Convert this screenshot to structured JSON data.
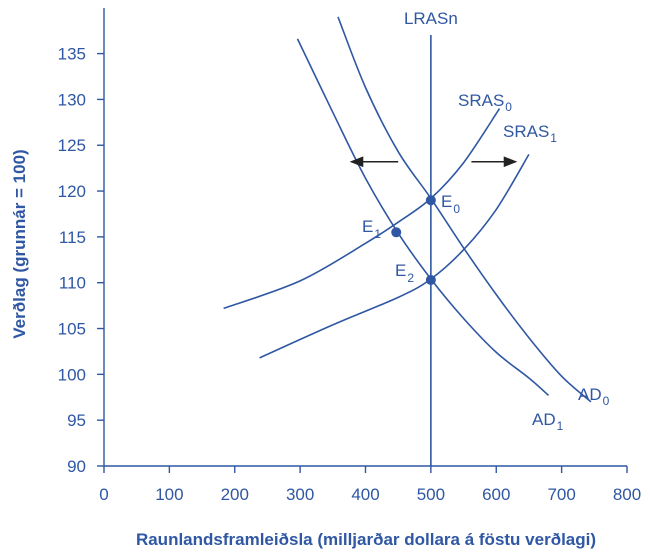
{
  "chart_data": {
    "type": "line",
    "xlabel": "Raunlandsframleiðsla (milljarðar dollara á föstu verðlagi)",
    "ylabel": "Verðlag (grunnár = 100)",
    "xlim": [
      0,
      800
    ],
    "ylim": [
      90,
      137
    ],
    "x_ticks": [
      0,
      100,
      200,
      300,
      400,
      500,
      600,
      700,
      800
    ],
    "y_ticks": [
      90,
      95,
      100,
      105,
      110,
      115,
      120,
      125,
      130,
      135
    ],
    "grid": false,
    "colors": {
      "ink": "#2f57a3",
      "arrow": "#222222"
    },
    "series": [
      {
        "name": "SRAS",
        "sub": "0",
        "points": [
          [
            183,
            107.2
          ],
          [
            300,
            110.2
          ],
          [
            400,
            114.3
          ],
          [
            450,
            116.6
          ],
          [
            500,
            119.2
          ],
          [
            550,
            123.1
          ],
          [
            605,
            129
          ]
        ]
      },
      {
        "name": "SRAS",
        "sub": "1",
        "points": [
          [
            238,
            101.8
          ],
          [
            350,
            105.4
          ],
          [
            450,
            108.4
          ],
          [
            500,
            110.4
          ],
          [
            550,
            113.6
          ],
          [
            600,
            118
          ],
          [
            650,
            124
          ]
        ]
      },
      {
        "name": "AD",
        "sub": "0",
        "points": [
          [
            358,
            139
          ],
          [
            400,
            131.3
          ],
          [
            450,
            124.3
          ],
          [
            500,
            119.2
          ],
          [
            550,
            113.8
          ],
          [
            600,
            108.7
          ],
          [
            650,
            104
          ],
          [
            700,
            99.8
          ],
          [
            745,
            97
          ]
        ]
      },
      {
        "name": "AD",
        "sub": "1",
        "points": [
          [
            296,
            136.6
          ],
          [
            350,
            128.6
          ],
          [
            400,
            121.4
          ],
          [
            450,
            115.4
          ],
          [
            500,
            110.4
          ],
          [
            550,
            106.1
          ],
          [
            600,
            102.4
          ],
          [
            650,
            99.6
          ],
          [
            680,
            97.7
          ]
        ]
      }
    ],
    "vertical_line": {
      "name": "LRASn",
      "x": 500
    },
    "points": [
      {
        "name": "E",
        "sub": "0",
        "x": 500,
        "y": 119
      },
      {
        "name": "E",
        "sub": "1",
        "x": 447,
        "y": 115.5
      },
      {
        "name": "E",
        "sub": "2",
        "x": 500,
        "y": 110.3
      }
    ],
    "arrows": [
      {
        "direction": "left",
        "from": [
          450,
          123.2
        ],
        "to": [
          378,
          123.2
        ]
      },
      {
        "direction": "right",
        "from": [
          562,
          123.2
        ],
        "to": [
          630,
          123.2
        ]
      }
    ]
  }
}
